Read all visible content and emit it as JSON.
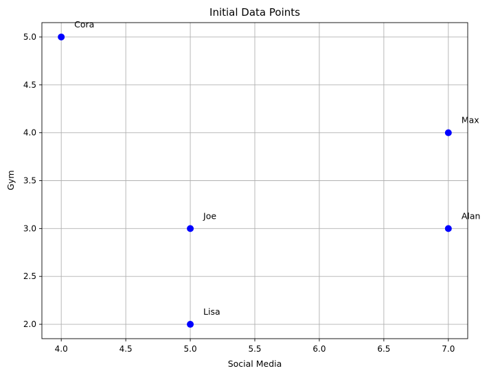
{
  "chart_data": {
    "type": "scatter",
    "title": "Initial Data Points",
    "xlabel": "Social Media",
    "ylabel": "Gym",
    "xlim": [
      3.85,
      7.15
    ],
    "ylim": [
      1.85,
      5.15
    ],
    "xticks": [
      4.0,
      4.5,
      5.0,
      5.5,
      6.0,
      6.5,
      7.0
    ],
    "xtick_labels": [
      "4.0",
      "4.5",
      "5.0",
      "5.5",
      "6.0",
      "6.5",
      "7.0"
    ],
    "yticks": [
      2.0,
      2.5,
      3.0,
      3.5,
      4.0,
      4.5,
      5.0
    ],
    "ytick_labels": [
      "2.0",
      "2.5",
      "3.0",
      "3.5",
      "4.0",
      "4.5",
      "5.0"
    ],
    "grid": true,
    "marker_color": "#0000ff",
    "points": [
      {
        "label": "Cora",
        "x": 4,
        "y": 5
      },
      {
        "label": "Max",
        "x": 7,
        "y": 4
      },
      {
        "label": "Joe",
        "x": 5,
        "y": 3
      },
      {
        "label": "Alan",
        "x": 7,
        "y": 3
      },
      {
        "label": "Lisa",
        "x": 5,
        "y": 2
      }
    ]
  }
}
